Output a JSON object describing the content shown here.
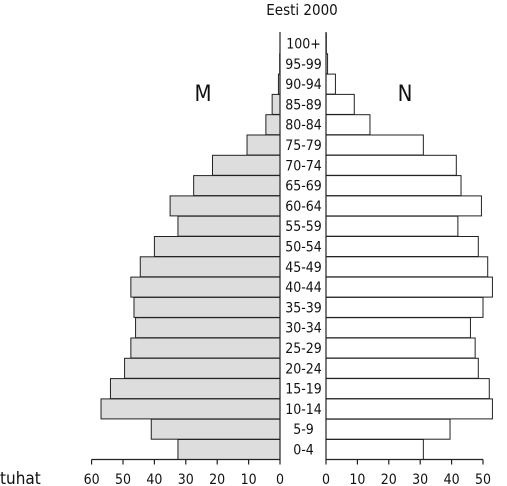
{
  "chart_data": {
    "type": "bar",
    "orientation": "horizontal-population-pyramid",
    "title": "Eesti 2000",
    "unit_label": "tuhat",
    "left_label": "M",
    "right_label": "N",
    "categories": [
      "0-4",
      "5-9",
      "10-14",
      "15-19",
      "20-24",
      "25-29",
      "30-34",
      "35-39",
      "40-44",
      "45-49",
      "50-54",
      "55-59",
      "60-64",
      "65-69",
      "70-74",
      "75-79",
      "80-84",
      "85-89",
      "90-94",
      "95-99",
      "100+"
    ],
    "series": [
      {
        "name": "M",
        "values": [
          32.5,
          41,
          57,
          54,
          49.5,
          47.5,
          46,
          46.5,
          47.5,
          44.5,
          40,
          32.5,
          35,
          27.5,
          21.5,
          10.5,
          4.5,
          2.5,
          0.5,
          0.1,
          0
        ]
      },
      {
        "name": "N",
        "values": [
          31,
          39.5,
          53,
          52,
          48.5,
          47.5,
          46,
          50,
          53,
          51.5,
          48.5,
          42,
          49.5,
          43,
          41.5,
          31,
          14,
          9,
          3,
          0.5,
          0.1
        ]
      }
    ],
    "xlim_left": [
      60,
      0
    ],
    "xlim_right": [
      0,
      50
    ],
    "left_ticks": [
      "60",
      "50",
      "40",
      "30",
      "20",
      "10",
      "0"
    ],
    "right_ticks": [
      "0",
      "10",
      "20",
      "30",
      "40",
      "50"
    ],
    "grid": false,
    "colors": {
      "M": "#dddddd",
      "N": "#ffffff",
      "outline": "#222222"
    }
  }
}
